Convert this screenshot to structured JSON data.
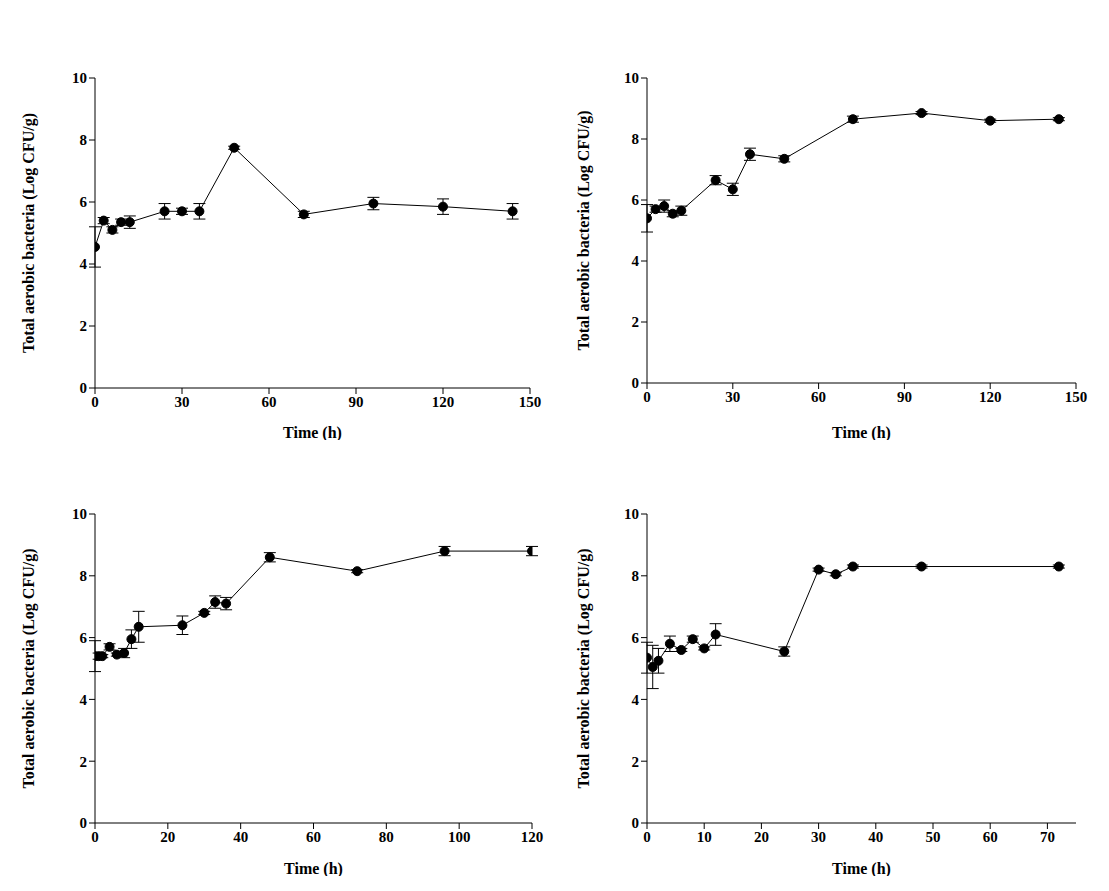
{
  "chart_data": [
    {
      "type": "line",
      "xlabel": "Time (h)",
      "ylabel": "Total aerobic bacteria (Log CFU/g)",
      "color": "#000000",
      "marker": "circle",
      "x": [
        0,
        3,
        6,
        9,
        12,
        24,
        30,
        36,
        48,
        72,
        96,
        120,
        144
      ],
      "values": [
        4.55,
        5.4,
        5.1,
        5.35,
        5.35,
        5.7,
        5.7,
        5.7,
        7.75,
        5.6,
        5.95,
        5.85,
        5.7
      ],
      "errors": [
        0.65,
        0.1,
        0.1,
        0.1,
        0.2,
        0.25,
        0.1,
        0.25,
        0.05,
        0.1,
        0.2,
        0.25,
        0.25
      ],
      "xlim": [
        0,
        150
      ],
      "xticks": [
        0,
        30,
        60,
        90,
        120,
        150
      ],
      "ylim": [
        0,
        10
      ],
      "yticks": [
        0,
        2,
        4,
        6,
        8,
        10
      ]
    },
    {
      "type": "line",
      "xlabel": "Time (h)",
      "ylabel": "Total aerobic bacteria (Log CFU/g)",
      "color": "#000000",
      "marker": "circle",
      "x": [
        0,
        3,
        6,
        9,
        12,
        24,
        30,
        36,
        48,
        72,
        96,
        120,
        144
      ],
      "values": [
        5.4,
        5.7,
        5.8,
        5.55,
        5.65,
        6.65,
        6.35,
        7.5,
        7.35,
        8.65,
        8.85,
        8.6,
        8.65
      ],
      "errors": [
        0.45,
        0.1,
        0.2,
        0.1,
        0.15,
        0.15,
        0.2,
        0.2,
        0.1,
        0.1,
        0.05,
        0.05,
        0.05
      ],
      "xlim": [
        0,
        150
      ],
      "xticks": [
        0,
        30,
        60,
        90,
        120,
        150
      ],
      "ylim": [
        0,
        10
      ],
      "yticks": [
        0,
        2,
        4,
        6,
        8,
        10
      ]
    },
    {
      "type": "line",
      "xlabel": "Time (h)",
      "ylabel": "Total aerobic bacteria (Log CFU/g)",
      "color": "#000000",
      "marker": "circle",
      "x": [
        0,
        1,
        2,
        4,
        6,
        8,
        10,
        12,
        24,
        30,
        33,
        36,
        48,
        72,
        96,
        120
      ],
      "values": [
        5.4,
        5.4,
        5.4,
        5.7,
        5.45,
        5.5,
        5.95,
        6.35,
        6.4,
        6.8,
        7.15,
        7.1,
        8.6,
        8.15,
        8.8,
        8.8
      ],
      "errors": [
        0.5,
        0.1,
        0.05,
        0.1,
        0.05,
        0.15,
        0.3,
        0.5,
        0.3,
        0.05,
        0.2,
        0.2,
        0.15,
        0.05,
        0.15,
        0.15
      ],
      "xlim": [
        0,
        120
      ],
      "xticks": [
        0,
        20,
        40,
        60,
        80,
        100,
        120
      ],
      "ylim": [
        0,
        10
      ],
      "yticks": [
        0,
        2,
        4,
        6,
        8,
        10
      ]
    },
    {
      "type": "line",
      "xlabel": "Time (h)",
      "ylabel": "Total aerobic bacteria (Log CFU/g)",
      "color": "#000000",
      "marker": "circle",
      "x": [
        0,
        1,
        2,
        4,
        6,
        8,
        10,
        12,
        24,
        30,
        33,
        36,
        48,
        72
      ],
      "values": [
        5.35,
        5.05,
        5.25,
        5.8,
        5.6,
        5.95,
        5.65,
        6.1,
        5.55,
        8.2,
        8.05,
        8.3,
        8.3,
        8.3
      ],
      "errors": [
        0.5,
        0.7,
        0.4,
        0.25,
        0.05,
        0.1,
        0.05,
        0.35,
        0.15,
        0.05,
        0.05,
        0.05,
        0.05,
        0.05
      ],
      "xlim": [
        0,
        75
      ],
      "xticks": [
        0,
        10,
        20,
        30,
        40,
        50,
        60,
        70
      ],
      "ylim": [
        0,
        10
      ],
      "yticks": [
        0,
        2,
        4,
        6,
        8,
        10
      ]
    }
  ]
}
